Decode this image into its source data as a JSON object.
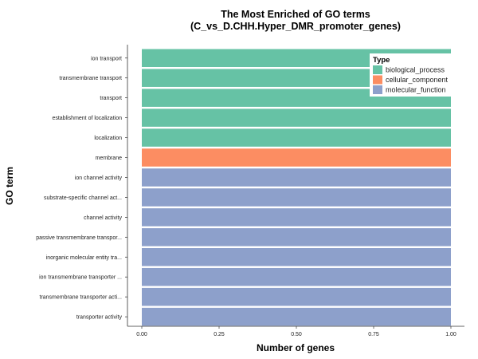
{
  "chart_data": {
    "type": "bar",
    "orientation": "horizontal",
    "title": "The Most Enriched of GO terms",
    "subtitle": "(C_vs_D.CHH.Hyper_DMR_promoter_genes)",
    "xlabel": "Number of genes",
    "ylabel": "GO term",
    "xlim": [
      0,
      1
    ],
    "x_ticks": [
      "0.00",
      "0.25",
      "0.50",
      "0.75",
      "1.00"
    ],
    "grid": false,
    "legend": {
      "title": "Type",
      "placement": "top-right",
      "items": [
        {
          "label": "biological_process",
          "color": "#66C2A5"
        },
        {
          "label": "cellular_component",
          "color": "#FC8D62"
        },
        {
          "label": "molecular_function",
          "color": "#8DA0CB"
        }
      ]
    },
    "categories": [
      "ion transport",
      "transmembrane transport",
      "transport",
      "establishment of localization",
      "localization",
      "membrane",
      "ion channel activity",
      "substrate-specific channel act...",
      "channel activity",
      "passive transmembrane transpor...",
      "inorganic molecular entity tra...",
      "ion transmembrane transporter ...",
      "transmembrane transporter acti...",
      "transporter activity"
    ],
    "values": [
      1,
      1,
      1,
      1,
      1,
      1,
      1,
      1,
      1,
      1,
      1,
      1,
      1,
      1
    ],
    "types": [
      "biological_process",
      "biological_process",
      "biological_process",
      "biological_process",
      "biological_process",
      "cellular_component",
      "molecular_function",
      "molecular_function",
      "molecular_function",
      "molecular_function",
      "molecular_function",
      "molecular_function",
      "molecular_function",
      "molecular_function"
    ]
  }
}
